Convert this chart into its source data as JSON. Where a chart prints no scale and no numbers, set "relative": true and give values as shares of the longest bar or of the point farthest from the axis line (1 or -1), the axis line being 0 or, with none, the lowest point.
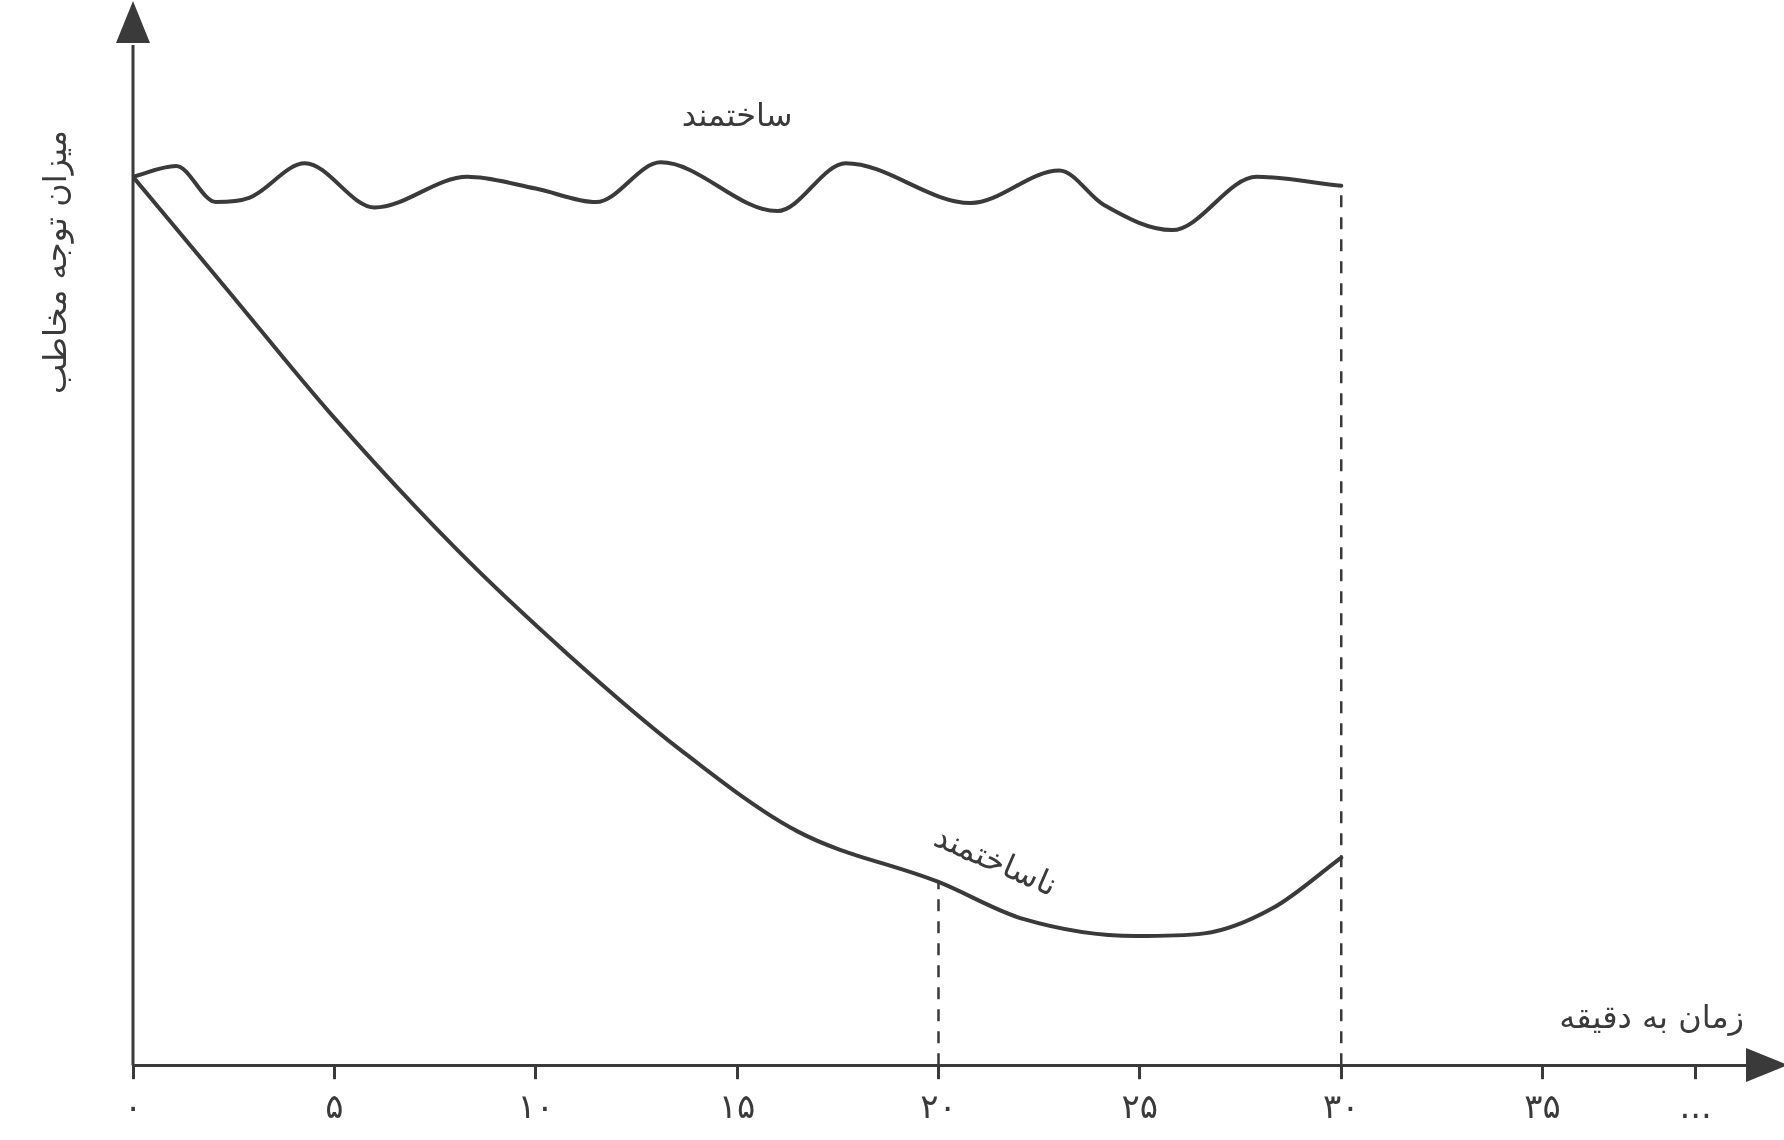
{
  "chart_data": {
    "type": "line",
    "relative": true,
    "xlabel": "زمان به دقیقه",
    "ylabel": "میزان توجه مخاطب",
    "xlim": [
      0,
      40
    ],
    "xticks": [
      {
        "value": 0,
        "label": "۰"
      },
      {
        "value": 5,
        "label": "۵"
      },
      {
        "value": 10,
        "label": "۱۰"
      },
      {
        "value": 15,
        "label": "۱۵"
      },
      {
        "value": 20,
        "label": "۲۰"
      },
      {
        "value": 25,
        "label": "۲۵"
      },
      {
        "value": 30,
        "label": "۳۰"
      },
      {
        "value": 35,
        "label": "۳۵"
      },
      {
        "value": 38.8,
        "label": "..."
      }
    ],
    "series": [
      {
        "name": "ساختمند",
        "color": "#3a3a3a",
        "x": [
          0,
          1.07,
          2.06,
          2.9,
          4.27,
          6.0,
          8.3,
          10,
          11.5,
          13.1,
          16.0,
          17.7,
          20.8,
          23.0,
          24.1,
          25.8,
          27.9,
          30
        ],
        "values": [
          0.984,
          0.996,
          0.956,
          0.961,
          0.999,
          0.95,
          0.984,
          0.971,
          0.956,
          1,
          0.946,
          0.999,
          0.955,
          0.991,
          0.953,
          0.925,
          0.984,
          0.974
        ]
      },
      {
        "name": "ناساختمند",
        "color": "#3a3a3a",
        "x": [
          0,
          2.34,
          4.9,
          8,
          10.8,
          13.6,
          16.5,
          20,
          22.1,
          24.9,
          26.6,
          28.3,
          30
        ],
        "values": [
          0.984,
          0.859,
          0.722,
          0.573,
          0.455,
          0.349,
          0.259,
          0.203,
          0.162,
          0.143,
          0.146,
          0.174,
          0.23
        ]
      }
    ],
    "ref_lines": [
      {
        "axis": "x",
        "value": 20,
        "line_style": "dashed"
      },
      {
        "axis": "x",
        "value": 30,
        "line_style": "dashed"
      }
    ],
    "grid": false,
    "legend": false,
    "marker": "none",
    "line_style": "solid"
  }
}
